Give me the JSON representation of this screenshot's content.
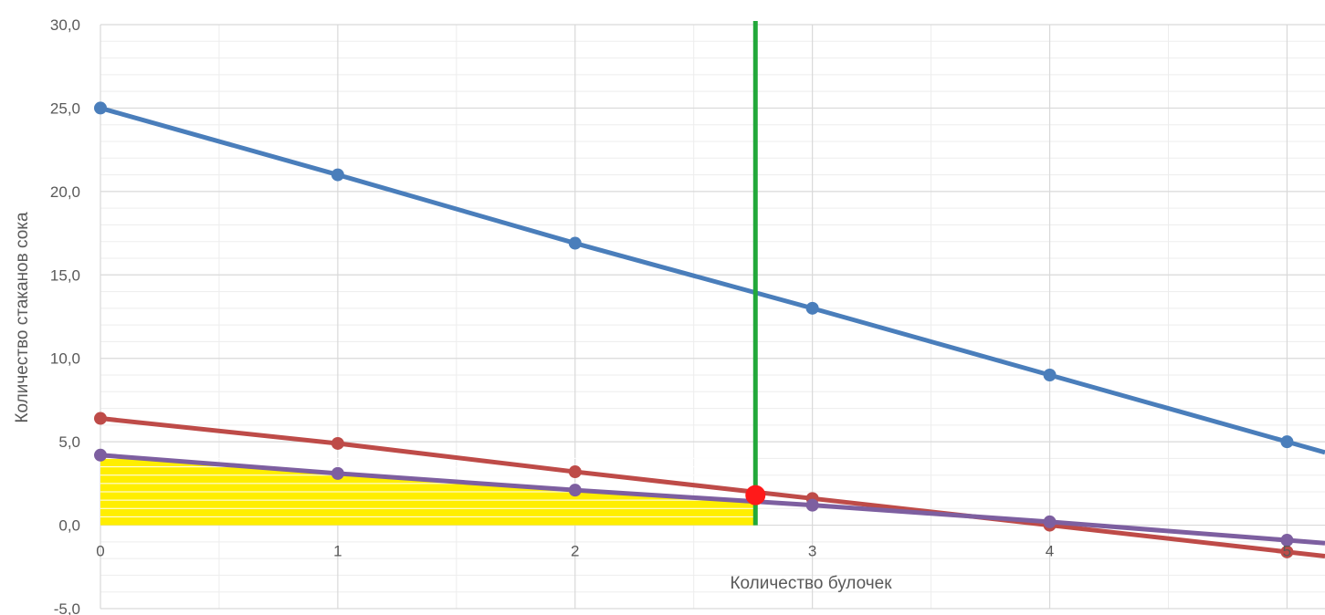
{
  "chart_data": {
    "type": "line",
    "title": "",
    "xlabel": "Количество булочек",
    "ylabel": "Количество стаканов сока",
    "xlim": [
      0,
      5.16
    ],
    "ylim": [
      -5,
      30
    ],
    "x_ticks": [
      0,
      1,
      2,
      3,
      4,
      5
    ],
    "x_tick_labels": [
      "0",
      "1",
      "2",
      "3",
      "4",
      "5"
    ],
    "y_ticks": [
      -5,
      0,
      5,
      10,
      15,
      20,
      25,
      30
    ],
    "y_tick_labels": [
      "-5,0",
      "0,0",
      "5,0",
      "10,0",
      "15,0",
      "20,0",
      "25,0",
      "30,0"
    ],
    "grid": true,
    "legend": "none",
    "x": [
      0,
      1,
      2,
      3,
      4,
      5
    ],
    "series": [
      {
        "values": [
          25.0,
          21.0,
          16.9,
          13.0,
          9.0,
          5.0
        ],
        "color": "#4a7ebb"
      },
      {
        "values": [
          6.4,
          4.9,
          3.2,
          1.6,
          0.0,
          -1.6
        ],
        "color": "#be4b48"
      },
      {
        "values": [
          4.2,
          3.1,
          2.1,
          1.2,
          0.2,
          -0.9
        ],
        "color": "#7d5fa0"
      }
    ],
    "vertical_line": {
      "x": 2.76,
      "color": "#22a83a"
    },
    "marker_point": {
      "x": 2.76,
      "y": 1.8,
      "color": "#ff1a1a"
    },
    "shaded_region": {
      "x_end": 2.76,
      "color": "#ffee00"
    }
  }
}
